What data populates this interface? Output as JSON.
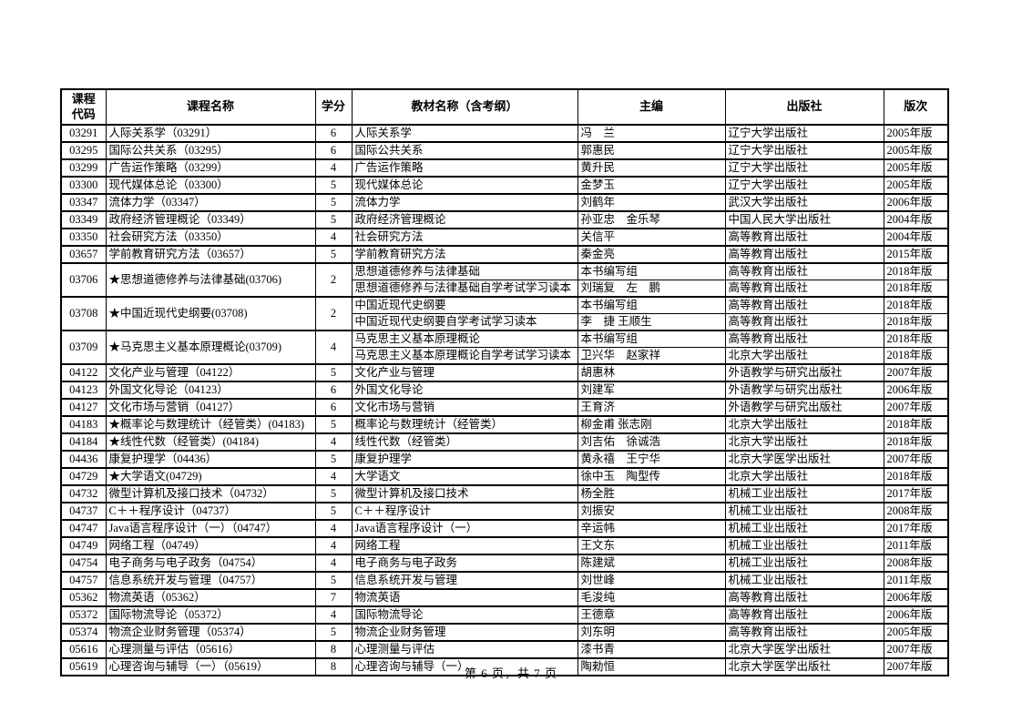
{
  "colors": {
    "background": "#ffffff",
    "text": "#000000",
    "border": "#000000"
  },
  "page": {
    "footer": "第 6 页，共 7 页"
  },
  "table": {
    "headers": [
      "课程\n代码",
      "课程名称",
      "学分",
      "教材名称（含考纲）",
      "主编",
      "出版社",
      "版次"
    ],
    "rows": [
      {
        "code": "03291",
        "name": "人际关系学（03291）",
        "credits": "6",
        "books": [
          {
            "title": "人际关系学",
            "editor": "冯　兰",
            "publisher": "辽宁大学出版社",
            "edition": "2005年版"
          }
        ]
      },
      {
        "code": "03295",
        "name": "国际公共关系（03295）",
        "credits": "6",
        "books": [
          {
            "title": "国际公共关系",
            "editor": "郭惠民",
            "publisher": "辽宁大学出版社",
            "edition": "2005年版"
          }
        ]
      },
      {
        "code": "03299",
        "name": "广告运作策略（03299）",
        "credits": "4",
        "books": [
          {
            "title": "广告运作策略",
            "editor": "黄升民",
            "publisher": "辽宁大学出版社",
            "edition": "2005年版"
          }
        ]
      },
      {
        "code": "03300",
        "name": "现代媒体总论（03300）",
        "credits": "5",
        "books": [
          {
            "title": "现代媒体总论",
            "editor": "金梦玉",
            "publisher": "辽宁大学出版社",
            "edition": "2005年版"
          }
        ]
      },
      {
        "code": "03347",
        "name": "流体力学（03347）",
        "credits": "5",
        "books": [
          {
            "title": "流体力学",
            "editor": "刘鹤年",
            "publisher": "武汉大学出版社",
            "edition": "2006年版"
          }
        ]
      },
      {
        "code": "03349",
        "name": "政府经济管理概论（03349）",
        "credits": "5",
        "books": [
          {
            "title": "政府经济管理概论",
            "editor": "孙亚忠　金乐琴",
            "publisher": "中国人民大学出版社",
            "edition": "2004年版"
          }
        ]
      },
      {
        "code": "03350",
        "name": "社会研究方法（03350）",
        "credits": "4",
        "books": [
          {
            "title": "社会研究方法",
            "editor": "关信平",
            "publisher": "高等教育出版社",
            "edition": "2004年版"
          }
        ]
      },
      {
        "code": "03657",
        "name": "学前教育研究方法（03657）",
        "credits": "5",
        "books": [
          {
            "title": "学前教育研究方法",
            "editor": "秦金亮",
            "publisher": "高等教育出版社",
            "edition": "2015年版"
          }
        ]
      },
      {
        "code": "03706",
        "name": "★思想道德修养与法律基础(03706)",
        "credits": "2",
        "books": [
          {
            "title": "思想道德修养与法律基础",
            "editor": "本书编写组",
            "publisher": "高等教育出版社",
            "edition": "2018年版"
          },
          {
            "title": "思想道德修养与法律基础自学考试学习读本",
            "editor": "刘瑞复　左　鹏",
            "publisher": "高等教育出版社",
            "edition": "2018年版"
          }
        ]
      },
      {
        "code": "03708",
        "name": "★中国近现代史纲要(03708)",
        "credits": "2",
        "books": [
          {
            "title": "中国近现代史纲要",
            "editor": "本书编写组",
            "publisher": "高等教育出版社",
            "edition": "2018年版"
          },
          {
            "title": "中国近现代史纲要自学考试学习读本",
            "editor": "李　捷 王顺生",
            "publisher": "高等教育出版社",
            "edition": "2018年版"
          }
        ]
      },
      {
        "code": "03709",
        "name": "★马克思主义基本原理概论(03709)",
        "credits": "4",
        "books": [
          {
            "title": "马克思主义基本原理概论",
            "editor": "本书编写组",
            "publisher": "高等教育出版社",
            "edition": "2018年版"
          },
          {
            "title": "马克思主义基本原理概论自学考试学习读本",
            "editor": "卫兴华　赵家祥",
            "publisher": "北京大学出版社",
            "edition": "2018年版"
          }
        ]
      },
      {
        "code": "04122",
        "name": "文化产业与管理（04122）",
        "credits": "5",
        "books": [
          {
            "title": "文化产业与管理",
            "editor": "胡惠林",
            "publisher": "外语教学与研究出版社",
            "edition": "2007年版"
          }
        ]
      },
      {
        "code": "04123",
        "name": "外国文化导论（04123）",
        "credits": "6",
        "books": [
          {
            "title": "外国文化导论",
            "editor": "刘建军",
            "publisher": "外语教学与研究出版社",
            "edition": "2006年版"
          }
        ]
      },
      {
        "code": "04127",
        "name": "文化市场与营销（04127）",
        "credits": "6",
        "books": [
          {
            "title": "文化市场与营销",
            "editor": "王育济",
            "publisher": "外语教学与研究出版社",
            "edition": "2007年版"
          }
        ]
      },
      {
        "code": "04183",
        "name": "★概率论与数理统计（经管类）(04183)",
        "credits": "5",
        "books": [
          {
            "title": "概率论与数理统计（经管类）",
            "editor": "柳金甫 张志刚",
            "publisher": "北京大学出版社",
            "edition": "2018年版"
          }
        ]
      },
      {
        "code": "04184",
        "name": "★线性代数（经管类）(04184)",
        "credits": "4",
        "books": [
          {
            "title": "线性代数（经管类）",
            "editor": "刘吉佑　徐诚浩",
            "publisher": "北京大学出版社",
            "edition": "2018年版"
          }
        ]
      },
      {
        "code": "04436",
        "name": "康复护理学（04436）",
        "credits": "5",
        "books": [
          {
            "title": "康复护理学",
            "editor": "黄永禧　王宁华",
            "publisher": "北京大学医学出版社",
            "edition": "2007年版"
          }
        ]
      },
      {
        "code": "04729",
        "name": "★大学语文(04729)",
        "credits": "4",
        "books": [
          {
            "title": "大学语文",
            "editor": "徐中玉　陶型传",
            "publisher": "北京大学出版社",
            "edition": "2018年版"
          }
        ]
      },
      {
        "code": "04732",
        "name": "微型计算机及接口技术（04732）",
        "credits": "5",
        "books": [
          {
            "title": "微型计算机及接口技术",
            "editor": "杨全胜",
            "publisher": "机械工业出版社",
            "edition": "2017年版"
          }
        ]
      },
      {
        "code": "04737",
        "name": "C＋＋程序设计（04737）",
        "credits": "5",
        "books": [
          {
            "title": "C＋＋程序设计",
            "editor": "刘振安",
            "publisher": "机械工业出版社",
            "edition": "2008年版"
          }
        ]
      },
      {
        "code": "04747",
        "name": "Java语言程序设计（一）（04747）",
        "credits": "4",
        "books": [
          {
            "title": "Java语言程序设计（一）",
            "editor": "辛运帏",
            "publisher": "机械工业出版社",
            "edition": "2017年版"
          }
        ]
      },
      {
        "code": "04749",
        "name": "网络工程（04749）",
        "credits": "4",
        "books": [
          {
            "title": "网络工程",
            "editor": "王文东",
            "publisher": "机械工业出版社",
            "edition": "2011年版"
          }
        ]
      },
      {
        "code": "04754",
        "name": "电子商务与电子政务（04754）",
        "credits": "4",
        "books": [
          {
            "title": "电子商务与电子政务",
            "editor": "陈建斌",
            "publisher": "机械工业出版社",
            "edition": "2008年版"
          }
        ]
      },
      {
        "code": "04757",
        "name": "信息系统开发与管理（04757）",
        "credits": "5",
        "books": [
          {
            "title": "信息系统开发与管理",
            "editor": "刘世峰",
            "publisher": "机械工业出版社",
            "edition": "2011年版"
          }
        ]
      },
      {
        "code": "05362",
        "name": "物流英语（05362）",
        "credits": "7",
        "books": [
          {
            "title": "物流英语",
            "editor": "毛浚纯",
            "publisher": "高等教育出版社",
            "edition": "2006年版"
          }
        ]
      },
      {
        "code": "05372",
        "name": "国际物流导论（05372）",
        "credits": "4",
        "books": [
          {
            "title": "国际物流导论",
            "editor": "王德章",
            "publisher": "高等教育出版社",
            "edition": "2006年版"
          }
        ]
      },
      {
        "code": "05374",
        "name": "物流企业财务管理（05374）",
        "credits": "5",
        "books": [
          {
            "title": "物流企业财务管理",
            "editor": "刘东明",
            "publisher": "高等教育出版社",
            "edition": "2005年版"
          }
        ]
      },
      {
        "code": "05616",
        "name": "心理测量与评估（05616）",
        "credits": "8",
        "books": [
          {
            "title": "心理测量与评估",
            "editor": "漆书青",
            "publisher": "北京大学医学出版社",
            "edition": "2007年版"
          }
        ]
      },
      {
        "code": "05619",
        "name": "心理咨询与辅导（一）（05619）",
        "credits": "8",
        "books": [
          {
            "title": "心理咨询与辅导（一）",
            "editor": "陶勑恒",
            "publisher": "北京大学医学出版社",
            "edition": "2007年版"
          }
        ]
      }
    ]
  }
}
